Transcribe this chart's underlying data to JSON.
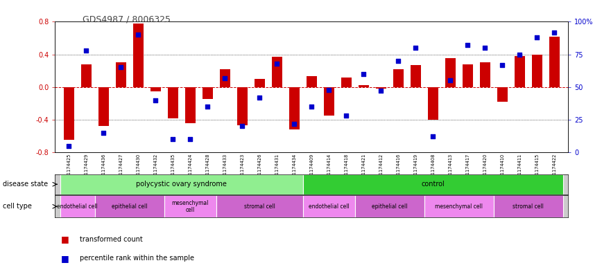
{
  "title": "GDS4987 / 8006325",
  "samples": [
    "GSM1174425",
    "GSM1174429",
    "GSM1174436",
    "GSM1174427",
    "GSM1174430",
    "GSM1174432",
    "GSM1174435",
    "GSM1174424",
    "GSM1174428",
    "GSM1174433",
    "GSM1174423",
    "GSM1174426",
    "GSM1174431",
    "GSM1174434",
    "GSM1174409",
    "GSM1174414",
    "GSM1174418",
    "GSM1174421",
    "GSM1174412",
    "GSM1174416",
    "GSM1174419",
    "GSM1174408",
    "GSM1174413",
    "GSM1174417",
    "GSM1174420",
    "GSM1174410",
    "GSM1174411",
    "GSM1174415",
    "GSM1174422"
  ],
  "bar_values": [
    -0.65,
    0.28,
    -0.48,
    0.3,
    0.78,
    -0.05,
    -0.38,
    -0.44,
    -0.15,
    0.22,
    -0.47,
    0.1,
    0.37,
    -0.52,
    0.13,
    -0.35,
    0.12,
    0.02,
    -0.02,
    0.22,
    0.27,
    -0.4,
    0.35,
    0.28,
    0.3,
    -0.18,
    0.38,
    0.4,
    0.62
  ],
  "percentile_values": [
    5,
    78,
    15,
    65,
    90,
    40,
    10,
    10,
    35,
    57,
    20,
    42,
    68,
    22,
    35,
    48,
    28,
    60,
    47,
    70,
    80,
    12,
    55,
    82,
    80,
    67,
    75,
    88,
    92
  ],
  "ylim": [
    -0.8,
    0.8
  ],
  "y_ticks": [
    -0.8,
    -0.4,
    0.0,
    0.4,
    0.8
  ],
  "right_ticks": [
    0,
    25,
    50,
    75,
    100
  ],
  "bar_color": "#cc0000",
  "dot_color": "#0000cc",
  "zero_line_color": "#cc0000",
  "grid_line_color": "#000000",
  "disease_groups": [
    {
      "label": "polycystic ovary syndrome",
      "start": 0,
      "end": 14,
      "color": "#90ee90"
    },
    {
      "label": "control",
      "start": 14,
      "end": 29,
      "color": "#33cc33"
    }
  ],
  "cell_types": [
    {
      "label": "endothelial cell",
      "start": 0,
      "end": 2,
      "color": "#ee88ee"
    },
    {
      "label": "epithelial cell",
      "start": 2,
      "end": 6,
      "color": "#cc66cc"
    },
    {
      "label": "mesenchymal\ncell",
      "start": 6,
      "end": 9,
      "color": "#ee88ee"
    },
    {
      "label": "stromal cell",
      "start": 9,
      "end": 14,
      "color": "#cc66cc"
    },
    {
      "label": "endothelial cell",
      "start": 14,
      "end": 17,
      "color": "#ee88ee"
    },
    {
      "label": "epithelial cell",
      "start": 17,
      "end": 21,
      "color": "#cc66cc"
    },
    {
      "label": "mesenchymal cell",
      "start": 21,
      "end": 25,
      "color": "#ee88ee"
    },
    {
      "label": "stromal cell",
      "start": 25,
      "end": 29,
      "color": "#cc66cc"
    }
  ],
  "background_color": "#ffffff"
}
